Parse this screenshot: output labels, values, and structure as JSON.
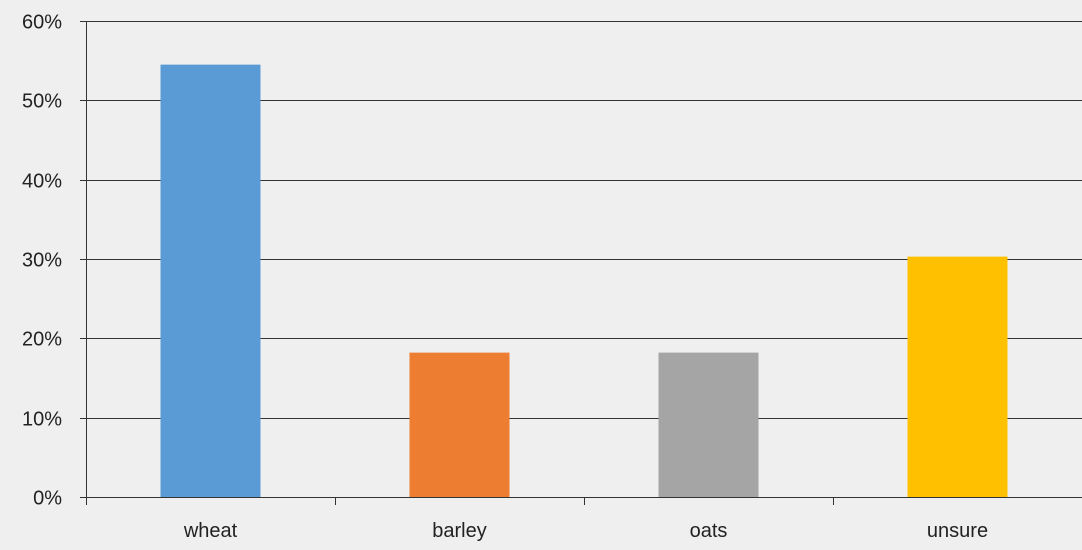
{
  "chart_data": {
    "type": "bar",
    "title": "",
    "xlabel": "",
    "ylabel": "",
    "categories": [
      "wheat",
      "barley",
      "oats",
      "unsure"
    ],
    "values": [
      54.5,
      18.2,
      18.2,
      30.3
    ],
    "unit": "%",
    "ylim": [
      0,
      60
    ],
    "yticks": [
      0,
      10,
      20,
      30,
      40,
      50,
      60
    ],
    "ytick_labels": [
      "0%",
      "10%",
      "20%",
      "30%",
      "40%",
      "50%",
      "60%"
    ],
    "grid": true,
    "legend": "none",
    "colors": [
      "#5b9bd5",
      "#ed7d31",
      "#a5a5a5",
      "#ffc000"
    ],
    "gridline_color": "#333333",
    "background_color": "#efefef"
  }
}
